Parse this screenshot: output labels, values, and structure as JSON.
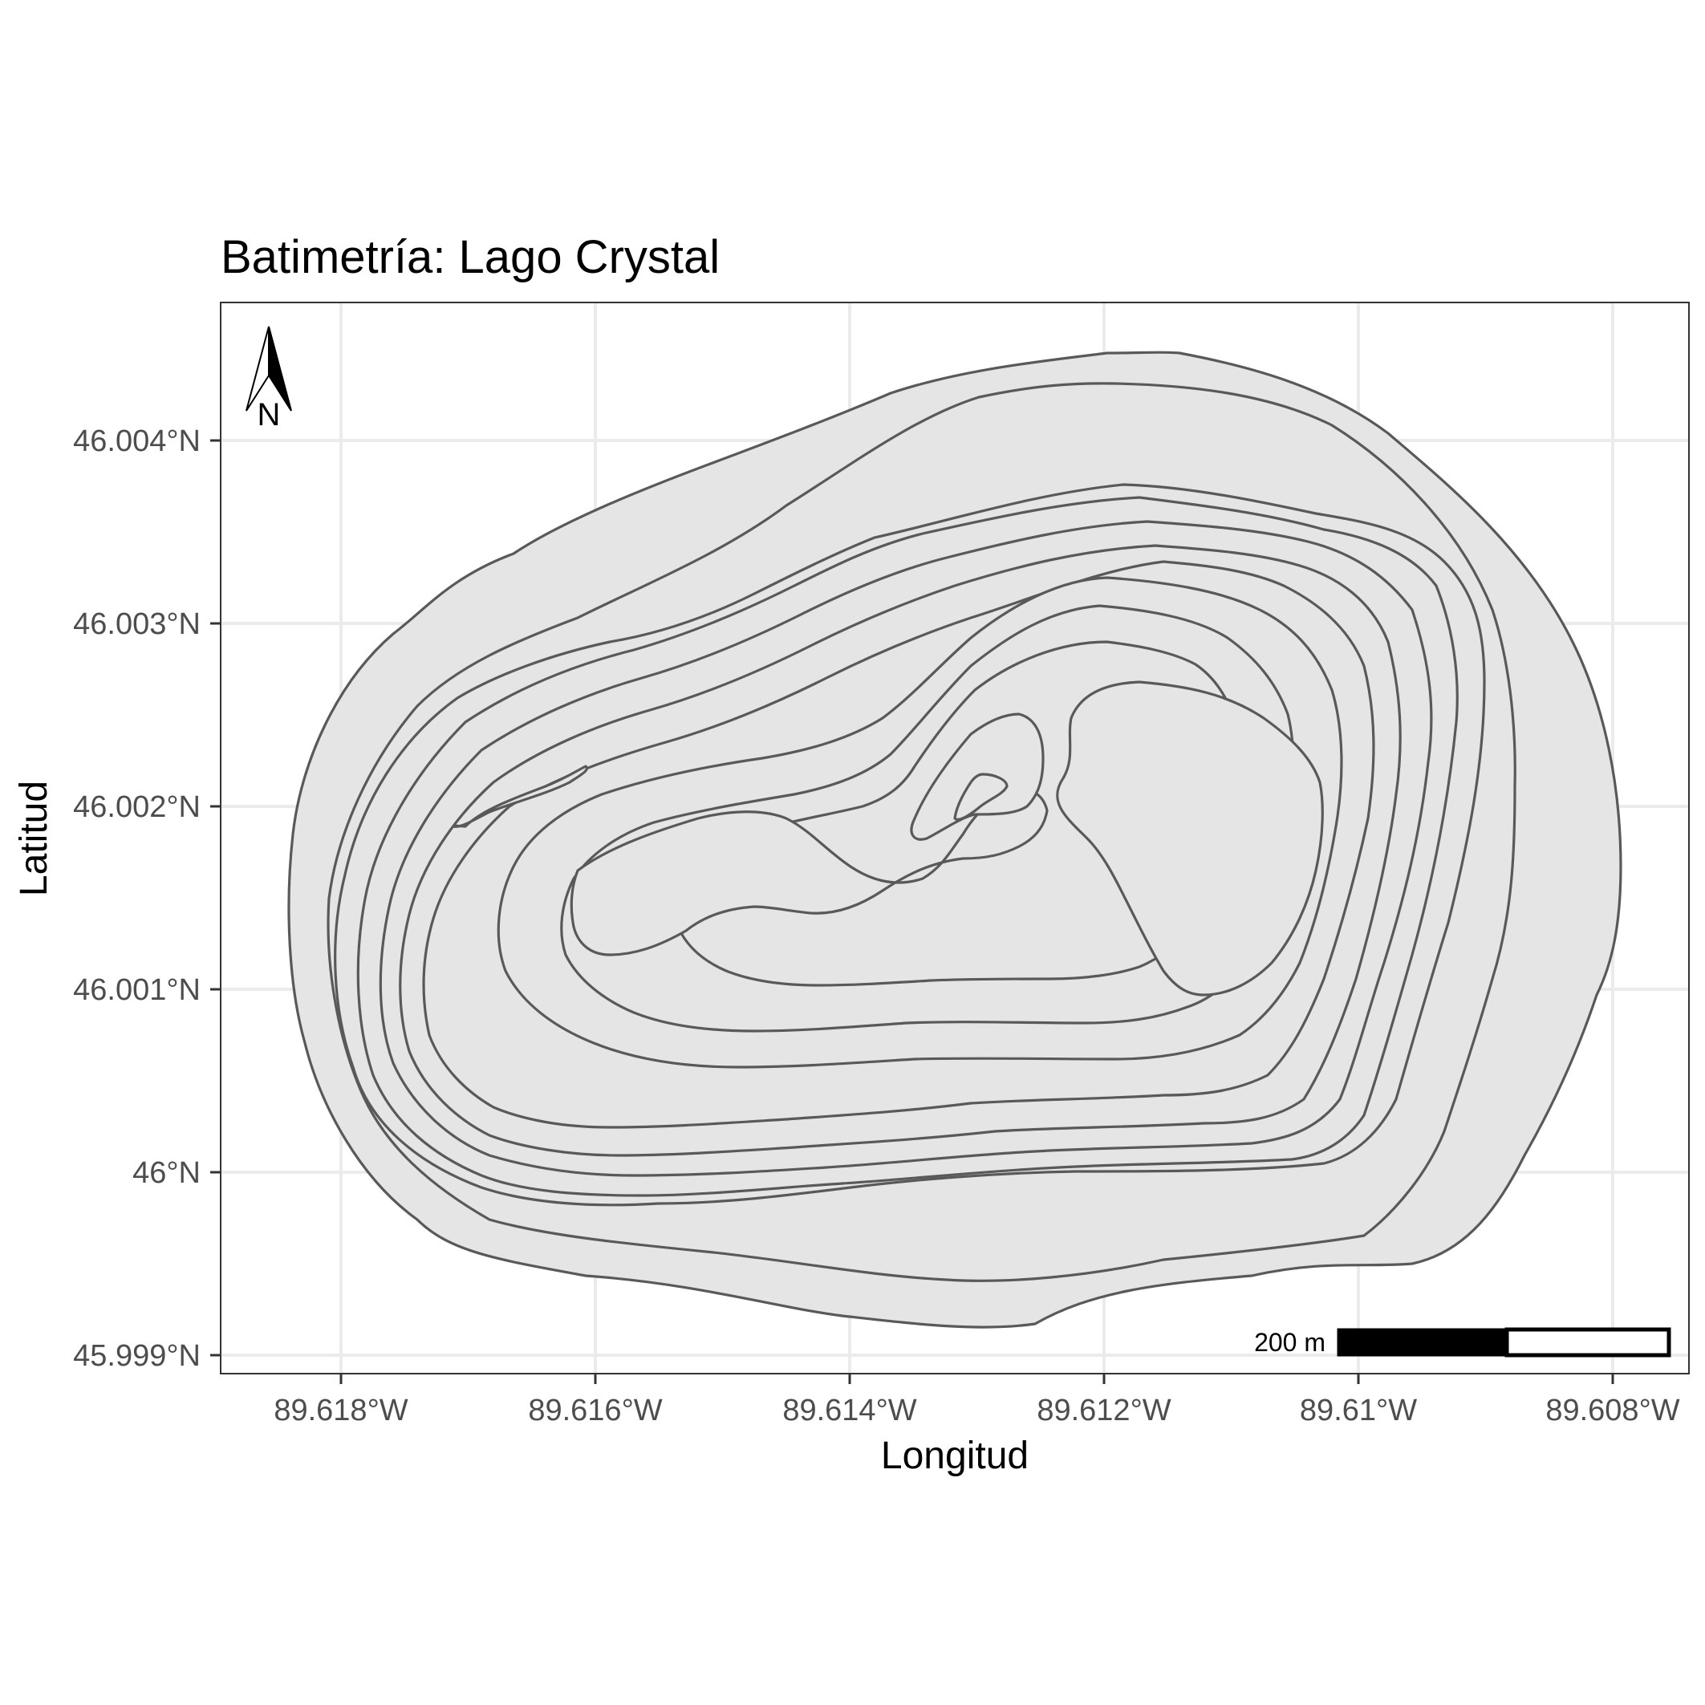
{
  "map": {
    "title": "Batimetría: Lago Crystal",
    "xlabel": "Longitud",
    "ylabel": "Latitud",
    "x_ticks": [
      "89.618°W",
      "89.616°W",
      "89.614°W",
      "89.612°W",
      "89.61°W",
      "89.608°W"
    ],
    "y_ticks": [
      "46.004°N",
      "46.003°N",
      "46.002°N",
      "46.001°N",
      "46°N",
      "45.999°N"
    ],
    "lake_fill": "#e5e5e5",
    "contour_color": "#595959",
    "grid": true,
    "north_arrow": {
      "label": "N",
      "placement": "top-left"
    },
    "scale_bar": {
      "label": "200 m",
      "placement": "bottom-right"
    }
  }
}
